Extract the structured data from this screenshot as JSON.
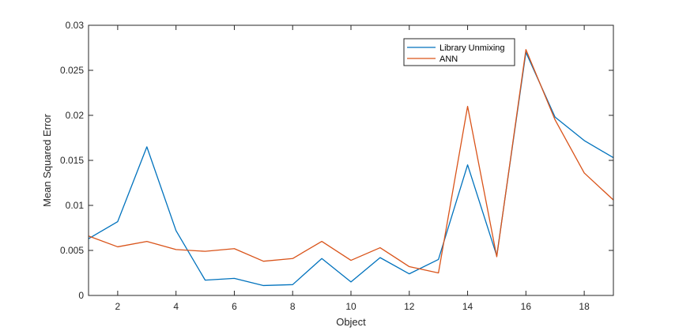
{
  "chart_data": {
    "type": "line",
    "title": "",
    "xlabel": "Object",
    "ylabel": "Mean Squared Error",
    "xlim": [
      1,
      19
    ],
    "ylim": [
      0,
      0.03
    ],
    "x_ticks": [
      2,
      4,
      6,
      8,
      10,
      12,
      14,
      16,
      18
    ],
    "y_ticks": [
      0,
      0.005,
      0.01,
      0.015,
      0.02,
      0.025,
      0.03
    ],
    "y_tick_labels": [
      "0",
      "0.005",
      "0.01",
      "0.015",
      "0.02",
      "0.025",
      "0.03"
    ],
    "grid": false,
    "legend_position": "top-right",
    "x": [
      1,
      2,
      3,
      4,
      5,
      6,
      7,
      8,
      9,
      10,
      11,
      12,
      13,
      14,
      15,
      16,
      17,
      18,
      19
    ],
    "series": [
      {
        "name": "Library Unmixing",
        "color": "#0072BD",
        "values": [
          0.0063,
          0.0082,
          0.0165,
          0.0072,
          0.0017,
          0.0019,
          0.0011,
          0.0012,
          0.0041,
          0.0015,
          0.0042,
          0.0024,
          0.004,
          0.0145,
          0.0044,
          0.027,
          0.0198,
          0.0172,
          0.0153
        ]
      },
      {
        "name": "ANN",
        "color": "#D95319",
        "values": [
          0.0066,
          0.0054,
          0.006,
          0.0051,
          0.0049,
          0.0052,
          0.0038,
          0.0041,
          0.006,
          0.0039,
          0.0053,
          0.0032,
          0.0025,
          0.021,
          0.0043,
          0.0273,
          0.0195,
          0.0136,
          0.0106
        ]
      }
    ]
  }
}
